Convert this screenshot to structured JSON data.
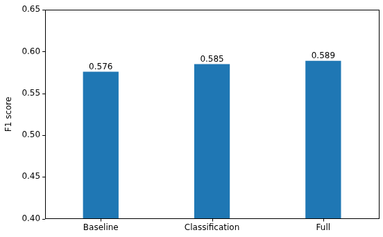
{
  "chart_data": {
    "type": "bar",
    "y_label": "F1 score",
    "categories": [
      "Baseline",
      "Classification",
      "Full"
    ],
    "values": [
      0.576,
      0.585,
      0.589
    ],
    "color": "#1f77b4",
    "ylim": [
      0.4,
      0.65
    ],
    "yticks": [
      {
        "value": 0.4,
        "label": "0.40"
      },
      0.45,
      {
        "value": 0.5,
        "label": "0.50"
      },
      0.55,
      {
        "value": 0.6,
        "label": "0.60"
      },
      0.65
    ],
    "grid": false,
    "data_labels": true
  }
}
